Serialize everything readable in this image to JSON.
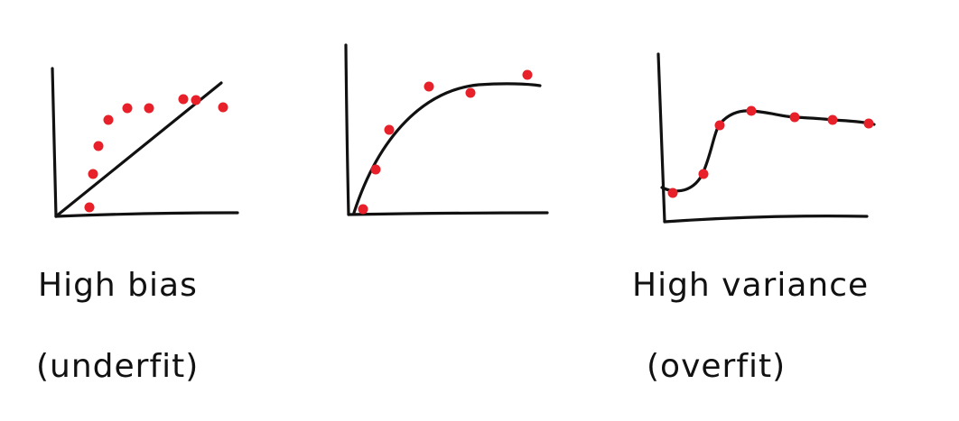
{
  "colors": {
    "ink": "#111111",
    "point": "#e8202a",
    "background": "#ffffff"
  },
  "panels": [
    {
      "caption_line1": "High bias",
      "caption_line2": "(underfit)",
      "fit_type": "straight-line"
    },
    {
      "caption_line1": "",
      "caption_line2": "",
      "fit_type": "smooth-curve"
    },
    {
      "caption_line1": "High variance",
      "caption_line2": "(overfit)",
      "fit_type": "wiggly-curve-through-points"
    }
  ]
}
